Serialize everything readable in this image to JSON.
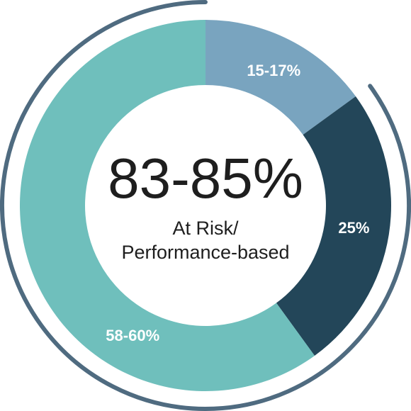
{
  "chart_data": {
    "type": "donut",
    "categories": [
      null,
      null,
      null
    ],
    "values": [
      15,
      25,
      60
    ],
    "value_labels": [
      "15-17%",
      "25%",
      "58-60%"
    ],
    "colors": [
      "#79a4bf",
      "#234659",
      "#6fbfbc"
    ],
    "center_label": "83-85%",
    "center_sublabel": [
      "At Risk/",
      "Performance-based"
    ],
    "outer_arc_color": "#4f6b80"
  }
}
